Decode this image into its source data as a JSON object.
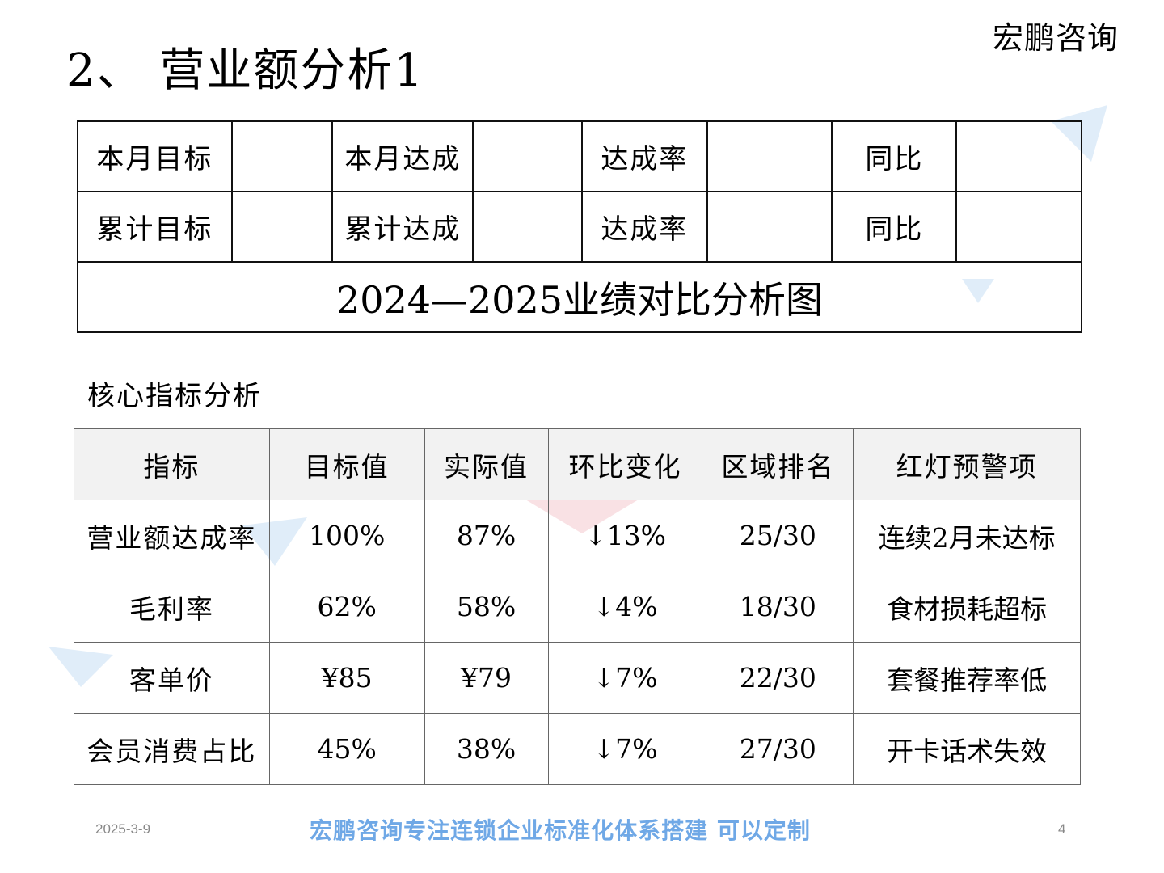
{
  "brand": "宏鹏咨询",
  "title": "2、 营业额分析1",
  "summary": {
    "row1": [
      "本月目标",
      "",
      "本月达成",
      "",
      "达成率",
      "",
      "同比",
      ""
    ],
    "row2": [
      "累计目标",
      "",
      "累计达成",
      "",
      "达成率",
      "",
      "同比",
      ""
    ],
    "banner": "2024—2025业绩对比分析图"
  },
  "section_heading": "核心指标分析",
  "metrics": {
    "headers": [
      "指标",
      "目标值",
      "实际值",
      "环比变化",
      "区域排名",
      "红灯预警项"
    ],
    "rows": [
      [
        "营业额达成率",
        "100%",
        "87%",
        "↓13%",
        "25/30",
        "连续2月未达标"
      ],
      [
        "毛利率",
        "62%",
        "58%",
        "↓4%",
        "18/30",
        "食材损耗超标"
      ],
      [
        "客单价",
        "¥85",
        "¥79",
        "↓7%",
        "22/30",
        "套餐推荐率低"
      ],
      [
        "会员消费占比",
        "45%",
        "38%",
        "↓7%",
        "27/30",
        "开卡话术失效"
      ]
    ]
  },
  "footer": {
    "date": "2025-3-9",
    "slogan": "宏鹏咨询专注连锁企业标准化体系搭建 可以定制",
    "page": "4"
  }
}
